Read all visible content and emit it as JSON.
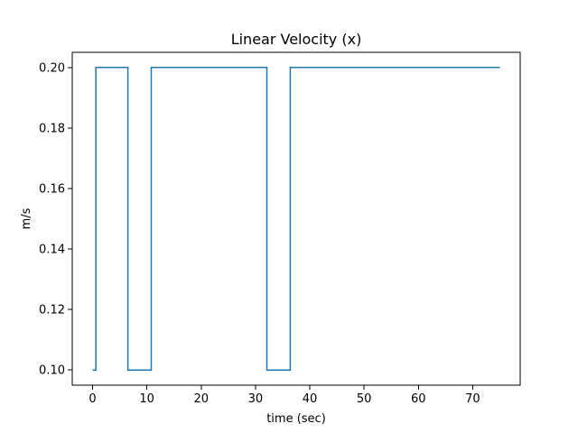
{
  "chart_data": {
    "type": "line",
    "title": "Linear Velocity (x)",
    "xlabel": "time (sec)",
    "ylabel": "m/s",
    "xlim": [
      -3.75,
      78.75
    ],
    "ylim": [
      0.095,
      0.205
    ],
    "xticks": [
      0,
      10,
      20,
      30,
      40,
      50,
      60,
      70
    ],
    "xtick_labels": [
      "0",
      "10",
      "20",
      "30",
      "40",
      "50",
      "60",
      "70"
    ],
    "yticks": [
      0.1,
      0.12,
      0.14,
      0.16,
      0.18,
      0.2
    ],
    "ytick_labels": [
      "0.10",
      "0.12",
      "0.14",
      "0.16",
      "0.18",
      "0.20"
    ],
    "grid": false,
    "line_color": "#1f77b4",
    "series": [
      {
        "x": [
          0,
          0.6,
          0.6,
          6.5,
          6.5,
          10.8,
          10.8,
          32.1,
          32.1,
          36.4,
          36.4,
          75
        ],
        "y": [
          0.1,
          0.1,
          0.2,
          0.2,
          0.1,
          0.1,
          0.2,
          0.2,
          0.1,
          0.1,
          0.2,
          0.2
        ]
      }
    ]
  }
}
